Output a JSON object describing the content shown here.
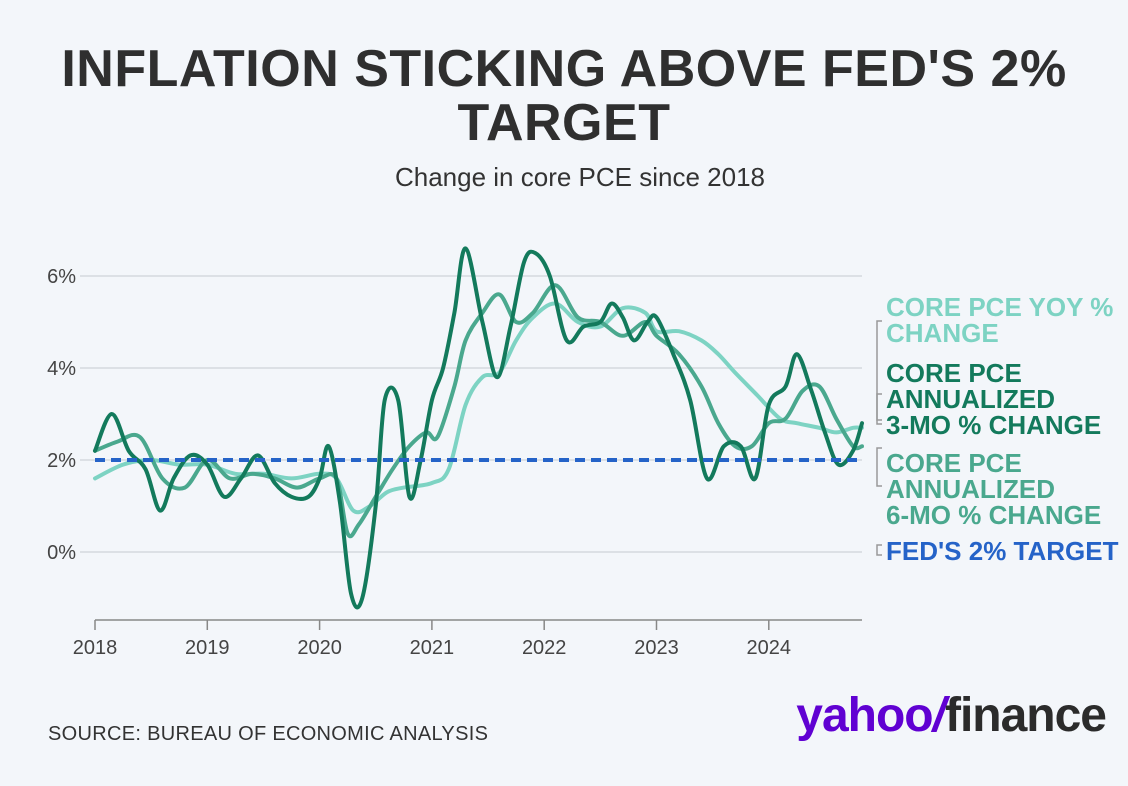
{
  "title": "INFLATION STICKING ABOVE FED'S 2% TARGET",
  "subtitle": "Change in core PCE since 2018",
  "source": "SOURCE: BUREAU OF ECONOMIC ANALYSIS",
  "logo": {
    "yahoo": "yahoo",
    "slash": "/",
    "finance": "finance"
  },
  "colors": {
    "yoy": "#7dd3c3",
    "three_mo": "#137a5c",
    "six_mo": "#4aa88e",
    "target": "#2563c8",
    "grid": "#d5d9de",
    "logo": "#6001d2"
  },
  "legend": [
    {
      "key": "yoy",
      "label": "CORE PCE YOY %\nCHANGE"
    },
    {
      "key": "three_mo",
      "label": "CORE PCE\nANNUALIZED\n3-MO % CHANGE"
    },
    {
      "key": "six_mo",
      "label": "CORE PCE\nANNUALIZED\n6-MO % CHANGE"
    },
    {
      "key": "target",
      "label": "FED'S 2% TARGET"
    }
  ],
  "chart_data": {
    "type": "line",
    "title": "INFLATION STICKING ABOVE FED'S 2% TARGET",
    "subtitle": "Change in core PCE since 2018",
    "xlabel": "",
    "ylabel": "",
    "xlim": [
      2018,
      2024.83
    ],
    "ylim": [
      -1.2,
      7.2
    ],
    "y_ticks": [
      0,
      2,
      4,
      6
    ],
    "y_tick_labels": [
      "0%",
      "2%",
      "4%",
      "6%"
    ],
    "x_ticks": [
      2018,
      2019,
      2020,
      2021,
      2022,
      2023,
      2024
    ],
    "x_tick_labels": [
      "2018",
      "2019",
      "2020",
      "2021",
      "2022",
      "2023",
      "2024"
    ],
    "target": 2.0,
    "series": [
      {
        "key": "yoy",
        "name": "CORE PCE YOY % CHANGE",
        "x": [
          2018.0,
          2018.25,
          2018.5,
          2018.75,
          2019.0,
          2019.25,
          2019.5,
          2019.75,
          2020.0,
          2020.15,
          2020.3,
          2020.45,
          2020.6,
          2020.75,
          2021.0,
          2021.15,
          2021.3,
          2021.45,
          2021.6,
          2021.75,
          2021.9,
          2022.1,
          2022.3,
          2022.5,
          2022.7,
          2022.9,
          2023.0,
          2023.2,
          2023.4,
          2023.55,
          2023.7,
          2023.9,
          2024.1,
          2024.25,
          2024.45,
          2024.6,
          2024.75,
          2024.83
        ],
        "values": [
          1.6,
          1.9,
          2.0,
          1.9,
          1.9,
          1.7,
          1.7,
          1.6,
          1.7,
          1.6,
          0.9,
          1.0,
          1.3,
          1.4,
          1.5,
          1.8,
          3.2,
          3.8,
          3.9,
          4.6,
          5.1,
          5.4,
          5.0,
          4.9,
          5.3,
          5.2,
          4.8,
          4.8,
          4.6,
          4.3,
          3.9,
          3.4,
          2.9,
          2.8,
          2.7,
          2.6,
          2.7,
          2.7
        ]
      },
      {
        "key": "three_mo",
        "name": "CORE PCE ANNUALIZED 3-MO % CHANGE",
        "x": [
          2018.0,
          2018.15,
          2018.3,
          2018.45,
          2018.58,
          2018.7,
          2018.85,
          2019.0,
          2019.15,
          2019.3,
          2019.45,
          2019.6,
          2019.75,
          2019.9,
          2020.0,
          2020.08,
          2020.18,
          2020.28,
          2020.38,
          2020.5,
          2020.58,
          2020.7,
          2020.8,
          2020.9,
          2021.0,
          2021.1,
          2021.2,
          2021.3,
          2021.45,
          2021.58,
          2021.7,
          2021.82,
          2021.92,
          2022.05,
          2022.2,
          2022.35,
          2022.5,
          2022.6,
          2022.7,
          2022.8,
          2022.92,
          2023.0,
          2023.15,
          2023.3,
          2023.45,
          2023.6,
          2023.75,
          2023.88,
          2024.0,
          2024.15,
          2024.25,
          2024.38,
          2024.5,
          2024.62,
          2024.75,
          2024.83
        ],
        "values": [
          2.2,
          3.0,
          2.2,
          1.8,
          0.9,
          1.6,
          2.1,
          1.9,
          1.2,
          1.6,
          2.1,
          1.5,
          1.2,
          1.2,
          1.6,
          2.3,
          1.1,
          -0.9,
          -1.0,
          1.0,
          3.3,
          3.3,
          1.2,
          2.0,
          3.3,
          4.0,
          5.2,
          6.6,
          5.0,
          3.8,
          4.9,
          6.3,
          6.5,
          6.0,
          4.6,
          4.9,
          5.0,
          5.4,
          5.1,
          4.6,
          5.0,
          5.1,
          4.3,
          3.3,
          1.6,
          2.3,
          2.3,
          1.6,
          3.2,
          3.6,
          4.3,
          3.5,
          2.6,
          1.9,
          2.2,
          2.8
        ]
      },
      {
        "key": "six_mo",
        "name": "CORE PCE ANNUALIZED 6-MO % CHANGE",
        "x": [
          2018.0,
          2018.2,
          2018.4,
          2018.6,
          2018.8,
          2019.0,
          2019.2,
          2019.4,
          2019.6,
          2019.8,
          2020.0,
          2020.15,
          2020.25,
          2020.35,
          2020.5,
          2020.65,
          2020.8,
          2020.95,
          2021.05,
          2021.2,
          2021.3,
          2021.45,
          2021.6,
          2021.75,
          2021.9,
          2022.1,
          2022.3,
          2022.5,
          2022.7,
          2022.9,
          2023.0,
          2023.2,
          2023.4,
          2023.55,
          2023.7,
          2023.85,
          2024.0,
          2024.15,
          2024.3,
          2024.45,
          2024.6,
          2024.75,
          2024.83
        ],
        "values": [
          2.2,
          2.4,
          2.5,
          1.6,
          1.4,
          2.0,
          1.6,
          1.7,
          1.6,
          1.4,
          1.6,
          1.6,
          0.4,
          0.6,
          1.2,
          1.8,
          2.3,
          2.6,
          2.5,
          3.6,
          4.6,
          5.2,
          5.6,
          5.0,
          5.2,
          5.8,
          5.1,
          5.0,
          4.7,
          5.0,
          4.7,
          4.3,
          3.6,
          2.8,
          2.3,
          2.3,
          2.8,
          2.9,
          3.5,
          3.6,
          2.9,
          2.3,
          2.3
        ]
      },
      {
        "key": "target",
        "name": "FED'S 2% TARGET",
        "x": [
          2018.0,
          2024.83
        ],
        "values": [
          2.0,
          2.0
        ]
      }
    ]
  }
}
